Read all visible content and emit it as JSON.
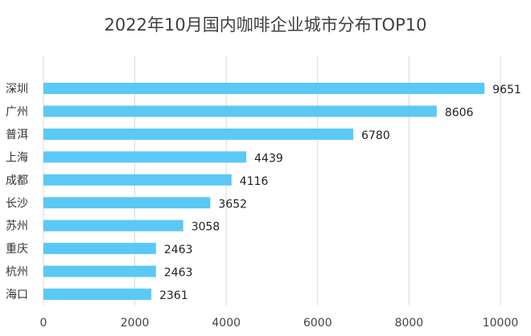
{
  "chart_data": {
    "type": "bar",
    "orientation": "horizontal",
    "title": "2022年10月国内咖啡企业城市分布TOP10",
    "categories": [
      "深圳",
      "广州",
      "普洱",
      "上海",
      "成都",
      "长沙",
      "苏州",
      "重庆",
      "杭州",
      "海口"
    ],
    "values": [
      9651,
      8606,
      6780,
      4439,
      4116,
      3652,
      3058,
      2463,
      2463,
      2361
    ],
    "xlim": [
      0,
      10000
    ],
    "xticks": [
      0,
      2000,
      4000,
      6000,
      8000,
      10000
    ],
    "grid": "vertical",
    "data_labels": true,
    "bar_color": "#5bc8f6",
    "xlabel": "",
    "ylabel": ""
  }
}
